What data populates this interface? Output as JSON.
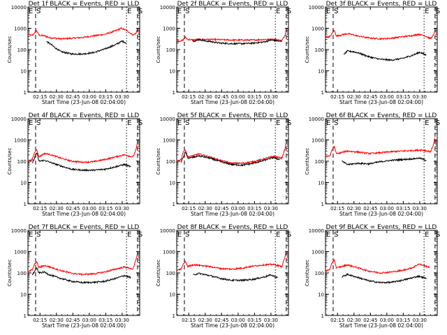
{
  "chart_data": [
    {
      "type": "line",
      "title": "Det 1f BLACK = Events, RED = LLD",
      "xlabel": "Start Time (23-Jun-08 02:04:00)",
      "ylabel": "Counts/sec",
      "xticks": [
        "02:15",
        "02:30",
        "02:45",
        "03:00",
        "03:15",
        "03:30"
      ],
      "yticks": [
        "1",
        "10",
        "100",
        "1000",
        "10000"
      ],
      "ylim": [
        1,
        10000
      ],
      "yscale": "log",
      "xrange_minutes": [
        0,
        102
      ],
      "markers": [
        {
          "label": "E",
          "minute": 0
        },
        {
          "label": "S",
          "minute": 7
        },
        {
          "label": "E",
          "minute": 90
        },
        {
          "label": "S",
          "minute": 100
        }
      ],
      "series": [
        {
          "color": "#ff0000",
          "x": [
            0,
            4,
            6,
            8,
            10,
            12,
            15,
            20,
            30,
            40,
            50,
            60,
            70,
            80,
            85,
            90,
            96,
            99,
            100
          ],
          "y": [
            480,
            470,
            600,
            780,
            480,
            460,
            440,
            360,
            320,
            340,
            370,
            440,
            520,
            760,
            1000,
            800,
            480,
            600,
            1200
          ]
        },
        {
          "color": "#000000",
          "x": [
            17,
            20,
            25,
            30,
            40,
            50,
            60,
            70,
            80,
            86,
            90
          ],
          "y": [
            240,
            190,
            120,
            80,
            62,
            62,
            72,
            105,
            170,
            250,
            200
          ]
        }
      ]
    },
    {
      "type": "line",
      "title": "Det 2f BLACK = Events, RED = LLD",
      "xlabel": "Start Time (23-Jun-08 02:04:00)",
      "ylabel": "Counts/sec",
      "xticks": [
        "02:15",
        "02:30",
        "02:45",
        "03:00",
        "03:15",
        "03:30"
      ],
      "yticks": [
        "1",
        "10",
        "100",
        "1000",
        "10000"
      ],
      "ylim": [
        1,
        10000
      ],
      "yscale": "log",
      "xrange_minutes": [
        0,
        102
      ],
      "markers": [
        {
          "label": "E",
          "minute": 0
        },
        {
          "label": "S",
          "minute": 7
        },
        {
          "label": "E",
          "minute": 90
        },
        {
          "label": "S",
          "minute": 100
        }
      ],
      "series": [
        {
          "color": "#ff0000",
          "x": [
            0,
            5,
            8,
            10,
            15,
            20,
            30,
            40,
            50,
            60,
            70,
            80,
            90,
            96,
            99,
            100
          ],
          "y": [
            250,
            260,
            380,
            300,
            280,
            300,
            300,
            290,
            280,
            280,
            280,
            300,
            300,
            260,
            500,
            1000
          ]
        },
        {
          "color": "#000000",
          "x": [
            15,
            18,
            20,
            25,
            30,
            40,
            50,
            60,
            70,
            80,
            86,
            90,
            96
          ],
          "y": [
            250,
            260,
            300,
            260,
            240,
            200,
            190,
            190,
            200,
            230,
            280,
            260,
            240
          ]
        }
      ]
    },
    {
      "type": "line",
      "title": "Det 3f BLACK = Events, RED = LLD",
      "xlabel": "Start Time (23-Jun-08 02:04:00)",
      "ylabel": "Counts/sec",
      "xticks": [
        "02:15",
        "02:30",
        "02:45",
        "03:00",
        "03:15",
        "03:30"
      ],
      "yticks": [
        "1",
        "10",
        "100",
        "1000",
        "10000"
      ],
      "ylim": [
        1,
        10000
      ],
      "yscale": "log",
      "xrange_minutes": [
        0,
        102
      ],
      "markers": [
        {
          "label": "E",
          "minute": 0
        },
        {
          "label": "S",
          "minute": 7
        },
        {
          "label": "E",
          "minute": 90
        },
        {
          "label": "S",
          "minute": 100
        }
      ],
      "series": [
        {
          "color": "#ff0000",
          "x": [
            0,
            4,
            6,
            8,
            10,
            14,
            20,
            30,
            40,
            50,
            60,
            70,
            80,
            85,
            90,
            96,
            99,
            100
          ],
          "y": [
            380,
            400,
            550,
            800,
            430,
            480,
            560,
            430,
            350,
            320,
            340,
            400,
            460,
            520,
            460,
            330,
            500,
            900
          ]
        },
        {
          "color": "#000000",
          "x": [
            17,
            20,
            25,
            30,
            40,
            50,
            60,
            70,
            80,
            86,
            92
          ],
          "y": [
            60,
            85,
            80,
            70,
            45,
            35,
            32,
            38,
            55,
            75,
            55
          ]
        }
      ]
    },
    {
      "type": "line",
      "title": "Det 4f BLACK = Events, RED = LLD",
      "xlabel": "Start Time (23-Jun-08 02:04:00)",
      "ylabel": "Counts/sec",
      "xticks": [
        "02:15",
        "02:30",
        "02:45",
        "03:00",
        "03:15",
        "03:30"
      ],
      "yticks": [
        "1",
        "10",
        "100",
        "1000",
        "10000"
      ],
      "ylim": [
        1,
        10000
      ],
      "yscale": "log",
      "xrange_minutes": [
        0,
        102
      ],
      "markers": [
        {
          "label": "E",
          "minute": 0
        },
        {
          "label": "S",
          "minute": 7
        },
        {
          "label": "E",
          "minute": 90
        },
        {
          "label": "S",
          "minute": 100
        }
      ],
      "series": [
        {
          "color": "#ff0000",
          "x": [
            0,
            4,
            6,
            8,
            10,
            15,
            20,
            30,
            40,
            50,
            60,
            70,
            80,
            88,
            96,
            99,
            100
          ],
          "y": [
            100,
            120,
            250,
            380,
            160,
            230,
            210,
            140,
            100,
            90,
            95,
            120,
            160,
            200,
            160,
            400,
            800
          ]
        },
        {
          "color": "#000000",
          "x": [
            4,
            8,
            10,
            15,
            20,
            30,
            40,
            50,
            60,
            70,
            80,
            88,
            94
          ],
          "y": [
            80,
            260,
            100,
            110,
            90,
            60,
            42,
            38,
            38,
            42,
            55,
            70,
            55
          ]
        }
      ]
    },
    {
      "type": "line",
      "title": "Det 5f BLACK = Events, RED = LLD",
      "xlabel": "Start Time (23-Jun-08 02:04:00)",
      "ylabel": "Counts/sec",
      "xticks": [
        "02:15",
        "02:30",
        "02:45",
        "03:00",
        "03:15",
        "03:30"
      ],
      "yticks": [
        "1",
        "10",
        "100",
        "1000",
        "10000"
      ],
      "ylim": [
        1,
        10000
      ],
      "yscale": "log",
      "xrange_minutes": [
        0,
        102
      ],
      "markers": [
        {
          "label": "E",
          "minute": 0
        },
        {
          "label": "S",
          "minute": 7
        },
        {
          "label": "E",
          "minute": 90
        },
        {
          "label": "S",
          "minute": 100
        }
      ],
      "series": [
        {
          "color": "#ff0000",
          "x": [
            0,
            4,
            6,
            8,
            10,
            15,
            20,
            30,
            40,
            50,
            60,
            70,
            80,
            88,
            96,
            99,
            100
          ],
          "y": [
            100,
            120,
            280,
            350,
            160,
            180,
            220,
            160,
            110,
            80,
            80,
            95,
            130,
            170,
            140,
            400,
            900
          ]
        },
        {
          "color": "#000000",
          "x": [
            4,
            8,
            10,
            15,
            20,
            30,
            40,
            50,
            60,
            70,
            80,
            88,
            94
          ],
          "y": [
            90,
            280,
            140,
            150,
            180,
            140,
            95,
            70,
            65,
            80,
            110,
            150,
            120
          ]
        }
      ]
    },
    {
      "type": "line",
      "title": "Det 6f BLACK = Events, RED = LLD",
      "xlabel": "Start Time (23-Jun-08 02:04:00)",
      "ylabel": "Counts/sec",
      "xticks": [
        "02:15",
        "02:30",
        "02:45",
        "03:00",
        "03:15",
        "03:30"
      ],
      "yticks": [
        "1",
        "10",
        "100",
        "1000",
        "10000"
      ],
      "ylim": [
        1,
        10000
      ],
      "yscale": "log",
      "xrange_minutes": [
        0,
        102
      ],
      "markers": [
        {
          "label": "E",
          "minute": 0
        },
        {
          "label": "S",
          "minute": 7
        },
        {
          "label": "E",
          "minute": 90
        },
        {
          "label": "S",
          "minute": 100
        }
      ],
      "series": [
        {
          "color": "#ff0000",
          "x": [
            0,
            4,
            6,
            8,
            10,
            15,
            20,
            30,
            40,
            50,
            60,
            70,
            80,
            88,
            96,
            99,
            100
          ],
          "y": [
            160,
            180,
            330,
            500,
            220,
            260,
            300,
            270,
            230,
            250,
            280,
            300,
            320,
            340,
            280,
            700,
            1500
          ]
        },
        {
          "color": "#000000",
          "x": [
            15,
            20,
            30,
            40,
            50,
            60,
            70,
            80,
            86,
            92
          ],
          "y": [
            100,
            70,
            80,
            75,
            95,
            110,
            120,
            130,
            140,
            110
          ]
        }
      ]
    },
    {
      "type": "line",
      "title": "Det 7f BLACK = Events, RED = LLD",
      "xlabel": "Start Time (23-Jun-08 02:04:00)",
      "ylabel": "Counts/sec",
      "xticks": [
        "02:15",
        "02:30",
        "02:45",
        "03:00",
        "03:15",
        "03:30"
      ],
      "yticks": [
        "1",
        "10",
        "100",
        "1000",
        "10000"
      ],
      "ylim": [
        1,
        10000
      ],
      "yscale": "log",
      "xrange_minutes": [
        0,
        102
      ],
      "markers": [
        {
          "label": "E",
          "minute": 0
        },
        {
          "label": "S",
          "minute": 7
        },
        {
          "label": "E",
          "minute": 90
        },
        {
          "label": "S",
          "minute": 100
        }
      ],
      "series": [
        {
          "color": "#ff0000",
          "x": [
            0,
            4,
            6,
            8,
            10,
            15,
            20,
            30,
            40,
            50,
            60,
            70,
            80,
            88,
            96,
            99,
            100
          ],
          "y": [
            110,
            140,
            250,
            330,
            180,
            220,
            190,
            130,
            95,
            85,
            90,
            110,
            150,
            190,
            150,
            500,
            900
          ]
        },
        {
          "color": "#000000",
          "x": [
            4,
            8,
            10,
            15,
            20,
            30,
            40,
            50,
            60,
            70,
            80,
            88,
            94
          ],
          "y": [
            80,
            170,
            100,
            110,
            80,
            55,
            40,
            35,
            36,
            40,
            55,
            75,
            60
          ]
        }
      ]
    },
    {
      "type": "line",
      "title": "Det 8f BLACK = Events, RED = LLD",
      "xlabel": "Start Time (23-Jun-08 02:04:00)",
      "ylabel": "Counts/sec",
      "xticks": [
        "02:15",
        "02:30",
        "02:45",
        "03:00",
        "03:15",
        "03:30"
      ],
      "yticks": [
        "1",
        "10",
        "100",
        "1000",
        "10000"
      ],
      "ylim": [
        1,
        10000
      ],
      "yscale": "log",
      "xrange_minutes": [
        0,
        102
      ],
      "markers": [
        {
          "label": "E",
          "minute": 0
        },
        {
          "label": "S",
          "minute": 7
        },
        {
          "label": "E",
          "minute": 90
        },
        {
          "label": "S",
          "minute": 100
        }
      ],
      "series": [
        {
          "color": "#ff0000",
          "x": [
            0,
            4,
            6,
            8,
            10,
            15,
            20,
            30,
            40,
            50,
            60,
            70,
            80,
            88,
            96,
            99,
            100
          ],
          "y": [
            130,
            150,
            260,
            350,
            200,
            240,
            230,
            200,
            160,
            150,
            170,
            210,
            240,
            250,
            200,
            600,
            1200
          ]
        },
        {
          "color": "#000000",
          "x": [
            15,
            20,
            30,
            40,
            50,
            60,
            70,
            80,
            86,
            92
          ],
          "y": [
            80,
            95,
            75,
            55,
            45,
            45,
            50,
            65,
            80,
            60
          ]
        }
      ]
    },
    {
      "type": "line",
      "title": "Det 9f BLACK = Events, RED = LLD",
      "xlabel": "Start Time (23-Jun-08 02:04:00)",
      "ylabel": "Counts/sec",
      "xticks": [
        "02:15",
        "02:30",
        "02:45",
        "03:00",
        "03:15",
        "03:30"
      ],
      "yticks": [
        "1",
        "10",
        "100",
        "1000",
        "10000"
      ],
      "ylim": [
        1,
        10000
      ],
      "yscale": "log",
      "xrange_minutes": [
        0,
        102
      ],
      "markers": [
        {
          "label": "E",
          "minute": 0
        },
        {
          "label": "S",
          "minute": 7
        },
        {
          "label": "E",
          "minute": 90
        },
        {
          "label": "S",
          "minute": 100
        }
      ],
      "series": [
        {
          "color": "#ff0000",
          "x": [
            0,
            4,
            6,
            8,
            10,
            15,
            20,
            30,
            40,
            50,
            60,
            70,
            80,
            85,
            90,
            95
          ],
          "y": [
            120,
            150,
            280,
            420,
            170,
            200,
            240,
            170,
            120,
            100,
            110,
            130,
            180,
            260,
            220,
            180
          ]
        },
        {
          "color": "#000000",
          "x": [
            15,
            20,
            30,
            40,
            50,
            60,
            70,
            80,
            85,
            92
          ],
          "y": [
            65,
            85,
            60,
            42,
            35,
            36,
            45,
            60,
            70,
            55
          ]
        }
      ]
    }
  ]
}
